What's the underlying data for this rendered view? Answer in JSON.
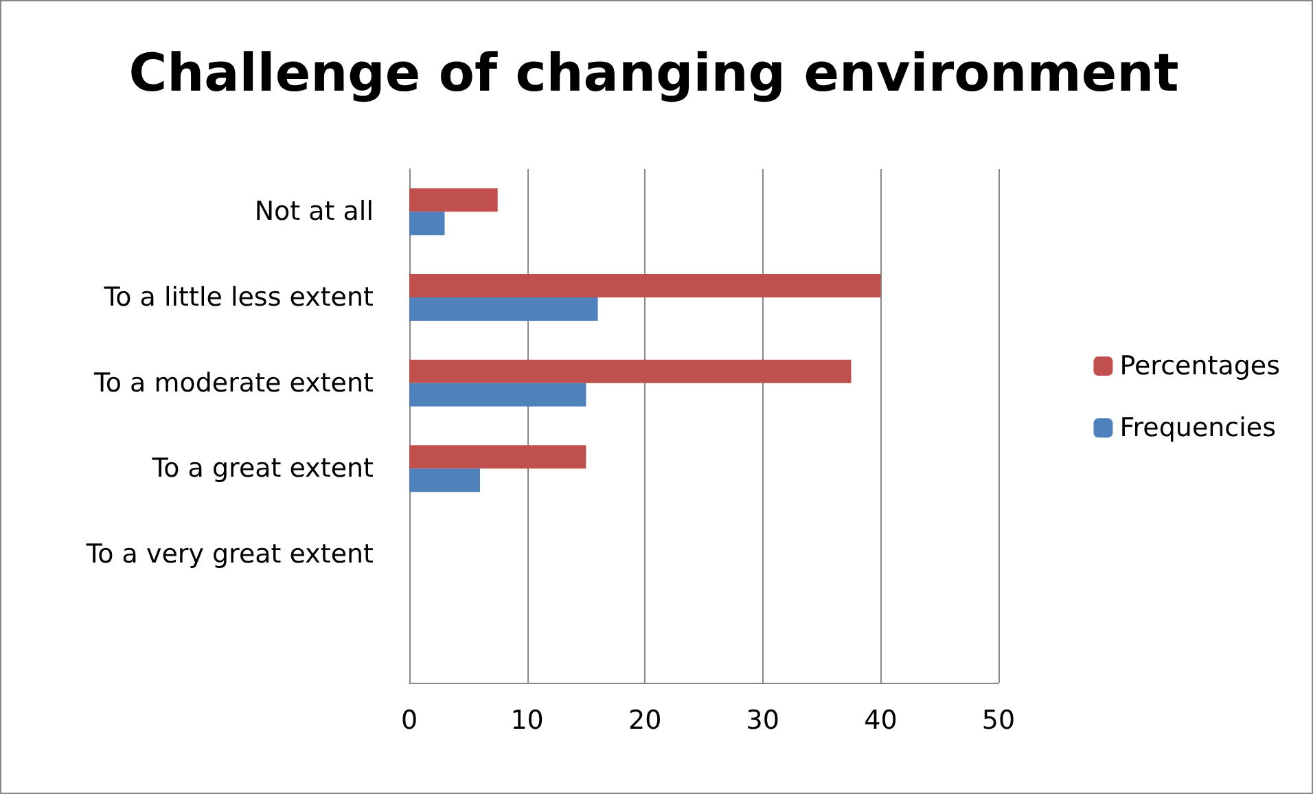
{
  "chart_data": {
    "type": "bar",
    "orientation": "horizontal",
    "title": "Challenge of changing environment",
    "categories": [
      "Not at all",
      "To a little less extent",
      "To a moderate extent",
      "To a great extent",
      "To a very great extent",
      null
    ],
    "series": [
      {
        "name": "Percentages",
        "color": "#c0504d",
        "values": [
          7.5,
          40,
          37.5,
          15,
          0,
          null
        ]
      },
      {
        "name": "Frequencies",
        "color": "#4f81bd",
        "values": [
          3,
          16,
          15,
          6,
          0,
          null
        ]
      }
    ],
    "xlim": [
      0,
      50
    ],
    "xticks": [
      0,
      10,
      20,
      30,
      40,
      50
    ],
    "grid": "x",
    "legend": "right"
  }
}
